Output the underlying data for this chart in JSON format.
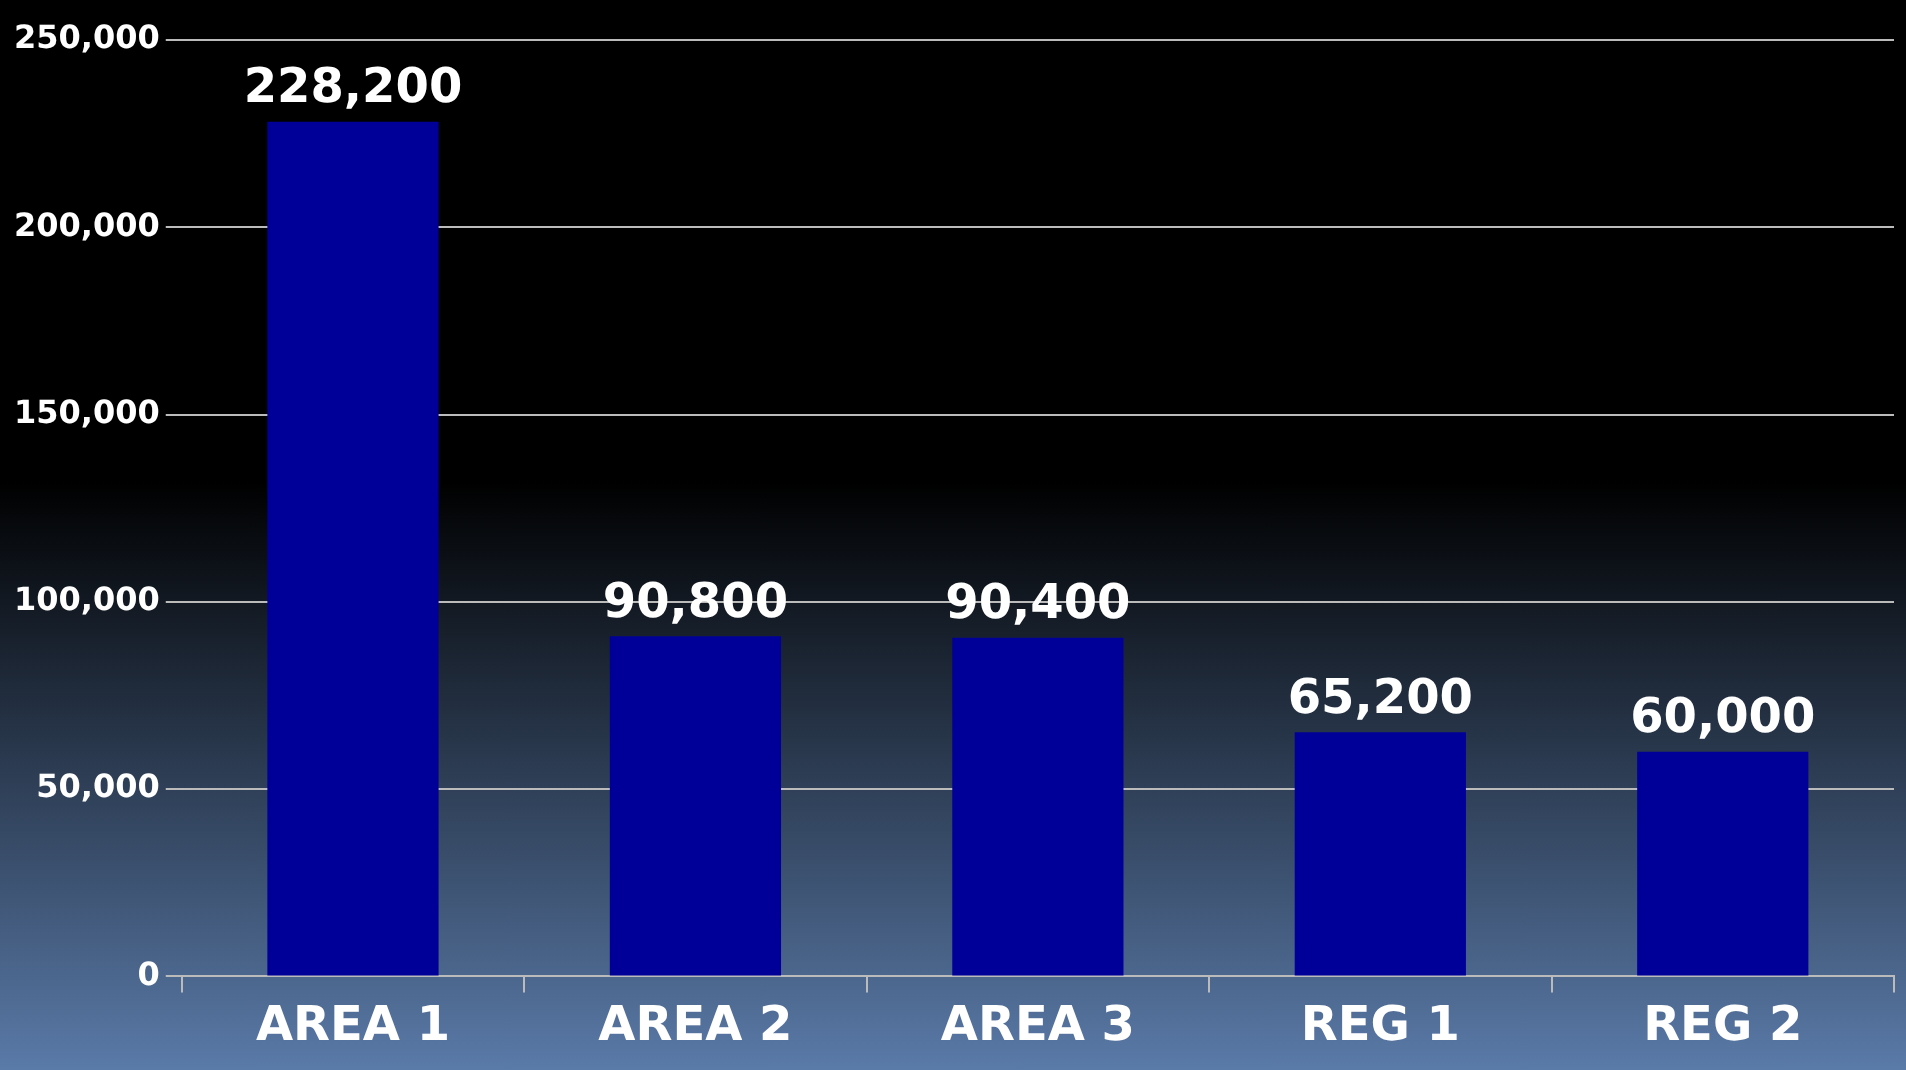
{
  "chart_data": {
    "type": "bar",
    "categories": [
      "AREA 1",
      "AREA 2",
      "AREA 3",
      "REG 1",
      "REG 2"
    ],
    "values": [
      228200,
      90800,
      90400,
      65200,
      60000
    ],
    "color": "#000099",
    "value_labels": [
      "228,200",
      "90,800",
      "90,400",
      "65,200",
      "60,000"
    ],
    "ylim": [
      0,
      250000
    ],
    "yticks": [
      0,
      {
        "value": 50000,
        "label": "50,000"
      },
      {
        "value": 100000,
        "label": "100,000"
      },
      {
        "value": 150000,
        "label": "150,000"
      },
      {
        "value": 200000,
        "label": "200,000"
      },
      {
        "value": 250000,
        "label": "250,000"
      }
    ],
    "grid": "y",
    "legend": false
  }
}
